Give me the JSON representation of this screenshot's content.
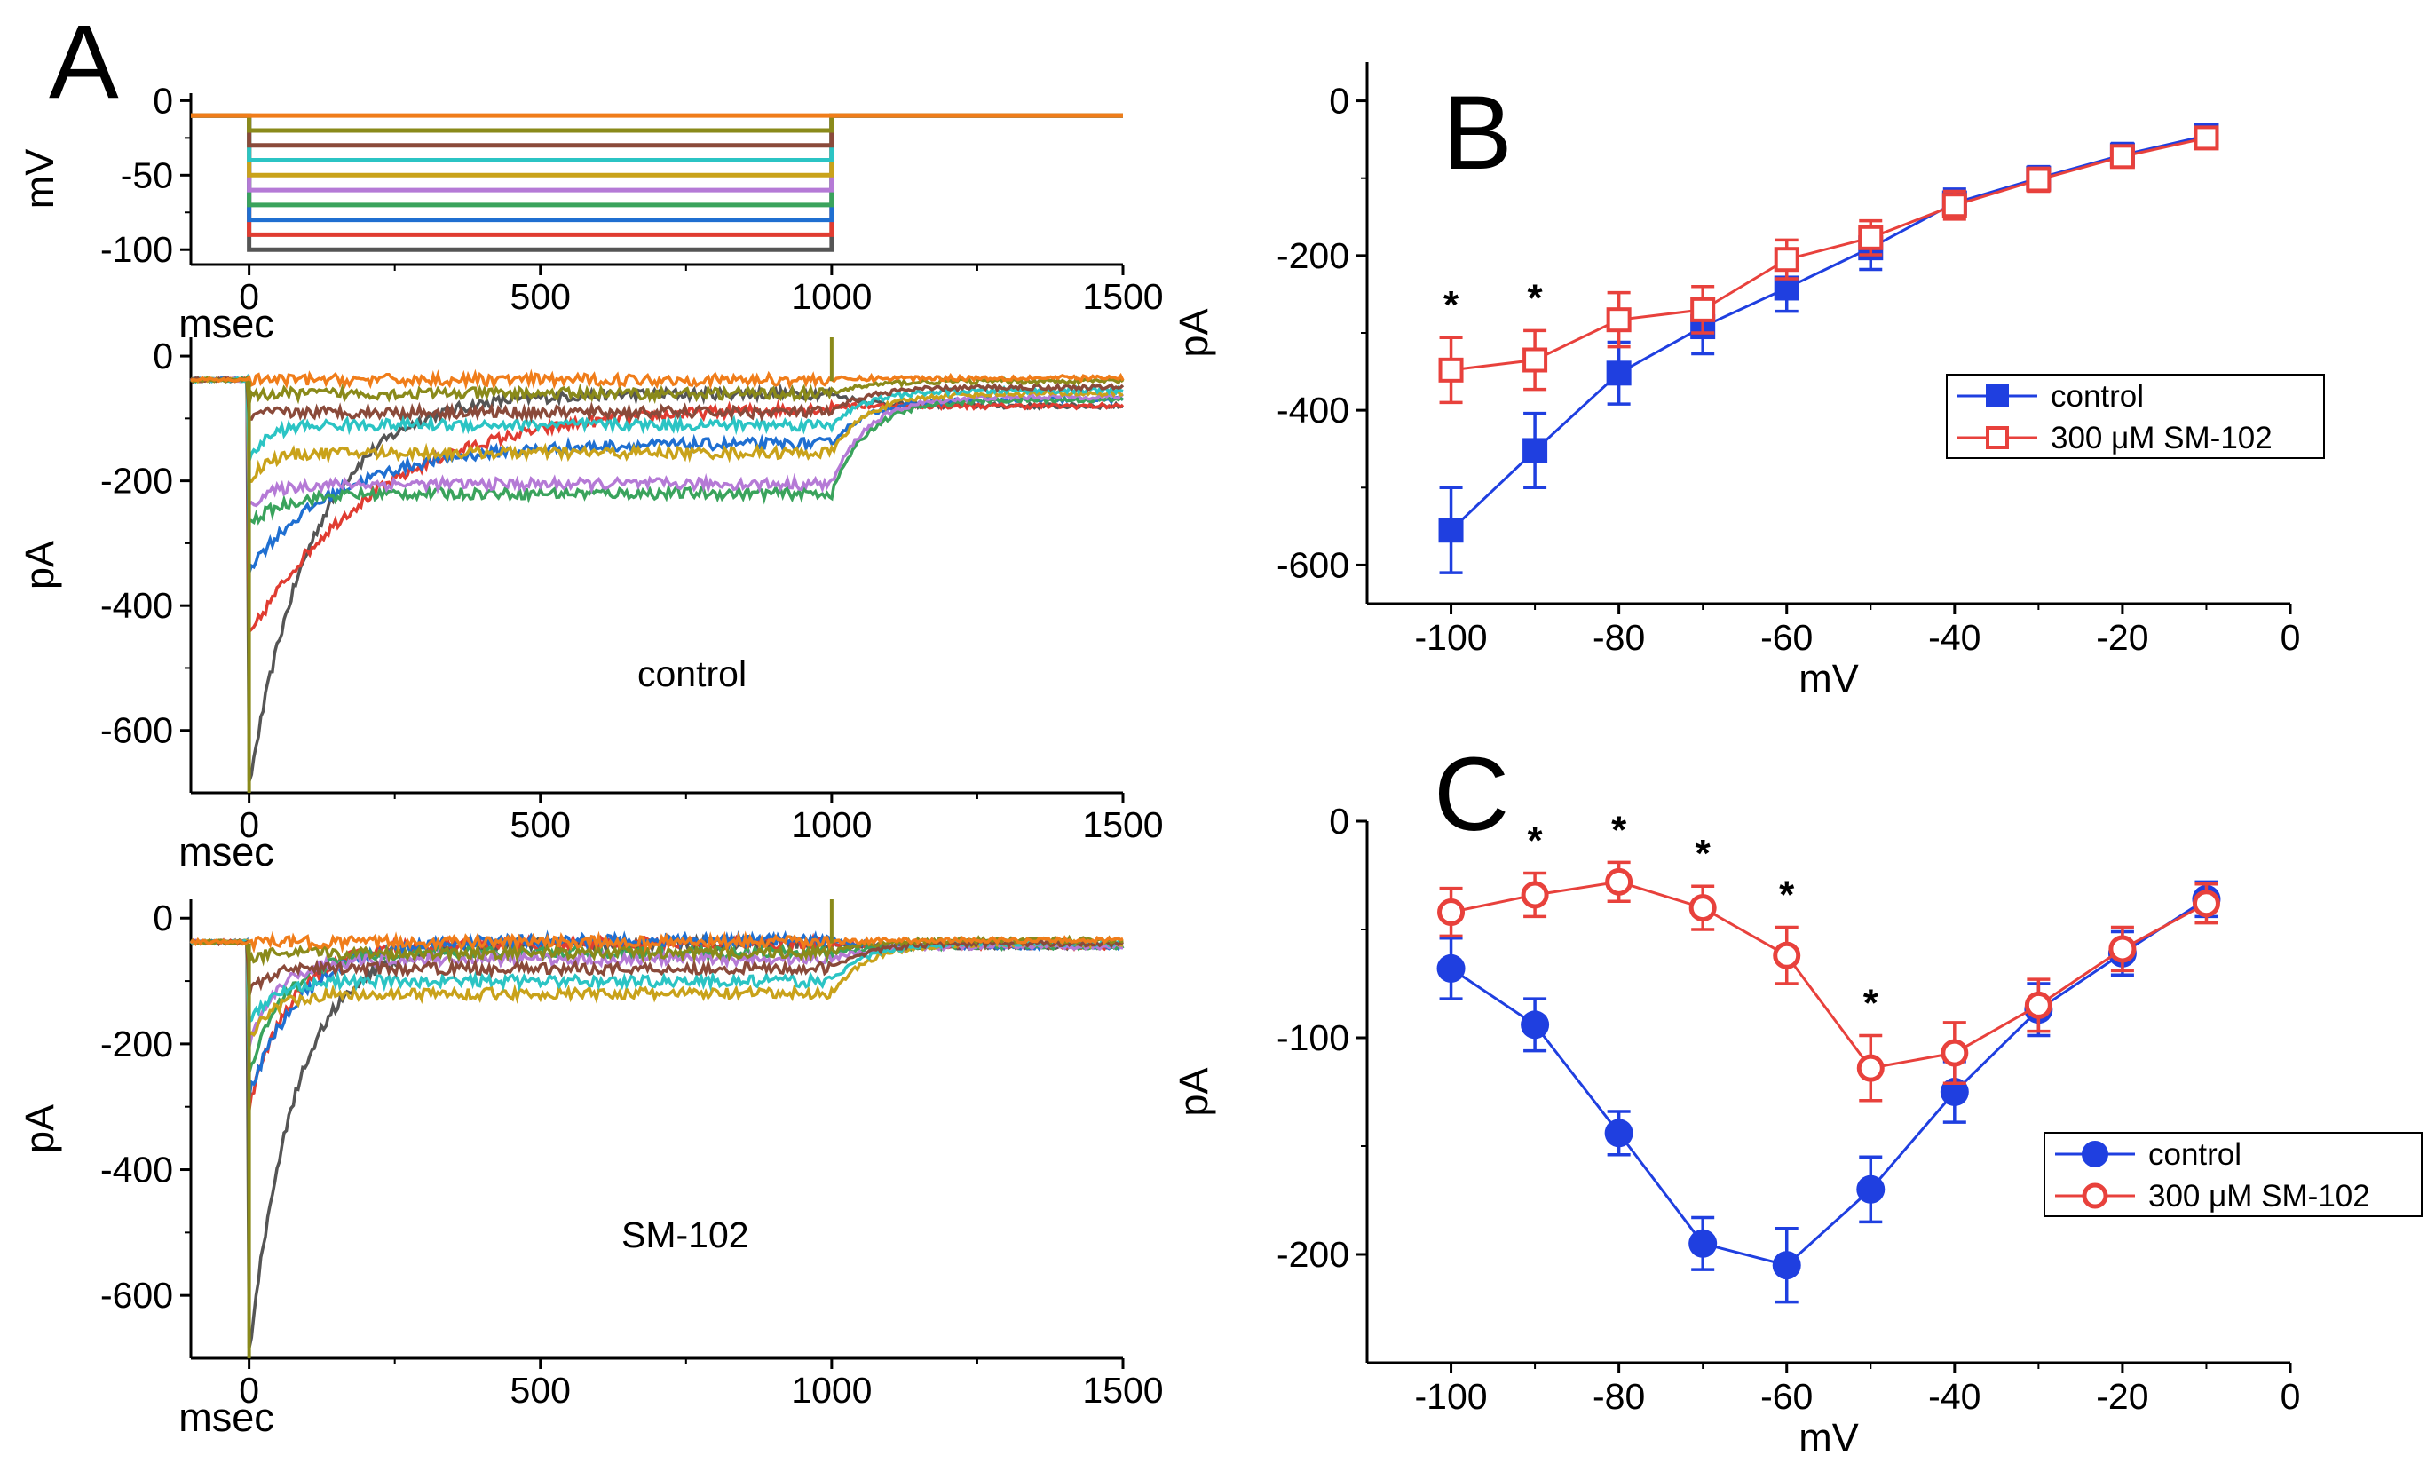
{
  "chart_data": [
    {
      "panel": "A",
      "type": "line",
      "subplot": "voltage-protocol",
      "xlabel": "msec",
      "ylabel": "mV",
      "xlim": [
        -100,
        1500
      ],
      "ylim": [
        -110,
        5
      ],
      "xticks": [
        0,
        500,
        1000,
        1500
      ],
      "yticks": [
        0,
        -50,
        -100
      ],
      "holding_mV": -10,
      "step_start_ms": 0,
      "step_end_ms": 1000,
      "steps_mV": [
        -100,
        -90,
        -80,
        -70,
        -60,
        -50,
        -40,
        -30,
        -20,
        -10
      ],
      "series_colors": [
        "#555555",
        "#e03c31",
        "#1f6fd1",
        "#3aa35c",
        "#b57ad6",
        "#c9a21a",
        "#2bc4c4",
        "#8a4a3a",
        "#8a8a1a",
        "#f07d1a"
      ]
    },
    {
      "panel": "A",
      "type": "line",
      "subplot": "current-traces",
      "label": "control",
      "xlabel": "msec",
      "ylabel": "pA",
      "xlim": [
        -100,
        1500
      ],
      "ylim": [
        -700,
        30
      ],
      "xticks": [
        0,
        500,
        1000,
        1500
      ],
      "yticks": [
        0,
        -200,
        -400,
        -600
      ],
      "series": [
        {
          "step_mV": -100,
          "peak_pA": -690,
          "late_pA": -60,
          "tau_ms": 110,
          "post_pA": -80,
          "color": "#555555"
        },
        {
          "step_mV": -90,
          "peak_pA": -450,
          "late_pA": -80,
          "tau_ms": 220,
          "post_pA": -80,
          "color": "#e03c31"
        },
        {
          "step_mV": -80,
          "peak_pA": -340,
          "late_pA": -140,
          "tau_ms": 160,
          "post_pA": -70,
          "color": "#1f6fd1"
        },
        {
          "step_mV": -70,
          "peak_pA": -270,
          "late_pA": -220,
          "tau_ms": 60,
          "post_pA": -70,
          "color": "#3aa35c"
        },
        {
          "step_mV": -60,
          "peak_pA": -240,
          "late_pA": -205,
          "tau_ms": 40,
          "post_pA": -65,
          "color": "#b57ad6"
        },
        {
          "step_mV": -50,
          "peak_pA": -200,
          "late_pA": -155,
          "tau_ms": 30,
          "post_pA": -60,
          "color": "#c9a21a"
        },
        {
          "step_mV": -40,
          "peak_pA": -170,
          "late_pA": -110,
          "tau_ms": 30,
          "post_pA": -55,
          "color": "#2bc4c4"
        },
        {
          "step_mV": -30,
          "peak_pA": -100,
          "late_pA": -90,
          "tau_ms": 20,
          "post_pA": -50,
          "color": "#8a4a3a"
        },
        {
          "step_mV": -20,
          "peak_pA": -70,
          "late_pA": -60,
          "tau_ms": 15,
          "post_pA": -40,
          "color": "#8a8a1a"
        },
        {
          "step_mV": -10,
          "peak_pA": -40,
          "late_pA": -38,
          "tau_ms": 10,
          "post_pA": -35,
          "color": "#f07d1a"
        }
      ]
    },
    {
      "panel": "A",
      "type": "line",
      "subplot": "current-traces",
      "label": "SM-102",
      "xlabel": "msec",
      "ylabel": "pA",
      "xlim": [
        -100,
        1500
      ],
      "ylim": [
        -700,
        30
      ],
      "xticks": [
        0,
        500,
        1000,
        1500
      ],
      "yticks": [
        0,
        -200,
        -400,
        -600
      ],
      "series": [
        {
          "step_mV": -100,
          "peak_pA": -690,
          "late_pA": -40,
          "tau_ms": 80,
          "post_pA": -45,
          "color": "#555555"
        },
        {
          "step_mV": -90,
          "peak_pA": -300,
          "late_pA": -40,
          "tau_ms": 70,
          "post_pA": -45,
          "color": "#e03c31"
        },
        {
          "step_mV": -80,
          "peak_pA": -280,
          "late_pA": -35,
          "tau_ms": 90,
          "post_pA": -45,
          "color": "#1f6fd1"
        },
        {
          "step_mV": -70,
          "peak_pA": -250,
          "late_pA": -55,
          "tau_ms": 60,
          "post_pA": -45,
          "color": "#3aa35c"
        },
        {
          "step_mV": -60,
          "peak_pA": -200,
          "late_pA": -65,
          "tau_ms": 50,
          "post_pA": -45,
          "color": "#b57ad6"
        },
        {
          "step_mV": -50,
          "peak_pA": -190,
          "late_pA": -120,
          "tau_ms": 40,
          "post_pA": -40,
          "color": "#c9a21a"
        },
        {
          "step_mV": -40,
          "peak_pA": -170,
          "late_pA": -100,
          "tau_ms": 40,
          "post_pA": -40,
          "color": "#2bc4c4"
        },
        {
          "step_mV": -30,
          "peak_pA": -120,
          "late_pA": -80,
          "tau_ms": 30,
          "post_pA": -40,
          "color": "#8a4a3a"
        },
        {
          "step_mV": -20,
          "peak_pA": -70,
          "late_pA": -55,
          "tau_ms": 20,
          "post_pA": -35,
          "color": "#8a8a1a"
        },
        {
          "step_mV": -10,
          "peak_pA": -40,
          "late_pA": -38,
          "tau_ms": 10,
          "post_pA": -35,
          "color": "#f07d1a"
        }
      ]
    },
    {
      "panel": "B",
      "type": "line",
      "xlabel": "mV",
      "ylabel": "pA",
      "xlim": [
        -110,
        0
      ],
      "ylim": [
        -650,
        50
      ],
      "xticks": [
        -100,
        -80,
        -60,
        -40,
        -20,
        0
      ],
      "yticks": [
        0,
        -200,
        -400,
        -600
      ],
      "legend": "right",
      "x": [
        -100,
        -90,
        -80,
        -70,
        -60,
        -50,
        -40,
        -30,
        -20,
        -10
      ],
      "series": [
        {
          "name": "control",
          "marker": "square-filled",
          "color": "#1f3fe0",
          "values": [
            -555,
            -452,
            -352,
            -292,
            -242,
            -190,
            -132,
            -100,
            -70,
            -45
          ],
          "errors": [
            55,
            48,
            40,
            35,
            30,
            28,
            18,
            15,
            15,
            12
          ]
        },
        {
          "name": "300 μM SM-102",
          "marker": "square-open",
          "color": "#e8413c",
          "values": [
            -348,
            -335,
            -283,
            -270,
            -205,
            -177,
            -135,
            -102,
            -72,
            -48
          ],
          "errors": [
            42,
            38,
            35,
            30,
            25,
            22,
            18,
            15,
            12,
            12
          ]
        }
      ],
      "significance_x": [
        -100,
        -90
      ],
      "significance_mark": "*"
    },
    {
      "panel": "C",
      "type": "line",
      "xlabel": "mV",
      "ylabel": "pA",
      "xlim": [
        -110,
        0
      ],
      "ylim": [
        -250,
        0
      ],
      "xticks": [
        -100,
        -80,
        -60,
        -40,
        -20,
        0
      ],
      "yticks": [
        0,
        -100,
        -200
      ],
      "legend": "bottom-right",
      "x": [
        -100,
        -90,
        -80,
        -70,
        -60,
        -50,
        -40,
        -30,
        -20,
        -10
      ],
      "series": [
        {
          "name": "control",
          "marker": "circle-filled",
          "color": "#1f3fe0",
          "values": [
            -68,
            -94,
            -144,
            -195,
            -205,
            -170,
            -125,
            -87,
            -61,
            -36
          ],
          "errors": [
            14,
            12,
            10,
            12,
            17,
            15,
            14,
            12,
            10,
            8
          ]
        },
        {
          "name": "300 μM SM-102",
          "marker": "circle-open",
          "color": "#e8413c",
          "values": [
            -42,
            -34,
            -28,
            -40,
            -62,
            -114,
            -107,
            -85,
            -59,
            -38
          ],
          "errors": [
            11,
            10,
            9,
            10,
            13,
            15,
            14,
            12,
            10,
            9
          ]
        }
      ],
      "significance_x": [
        -90,
        -80,
        -70,
        -60,
        -50
      ],
      "significance_mark": "*"
    }
  ],
  "labels": {
    "panel_a": "A",
    "panel_b": "B",
    "panel_c": "C",
    "control_note": "control",
    "sm102_note": "SM-102"
  }
}
